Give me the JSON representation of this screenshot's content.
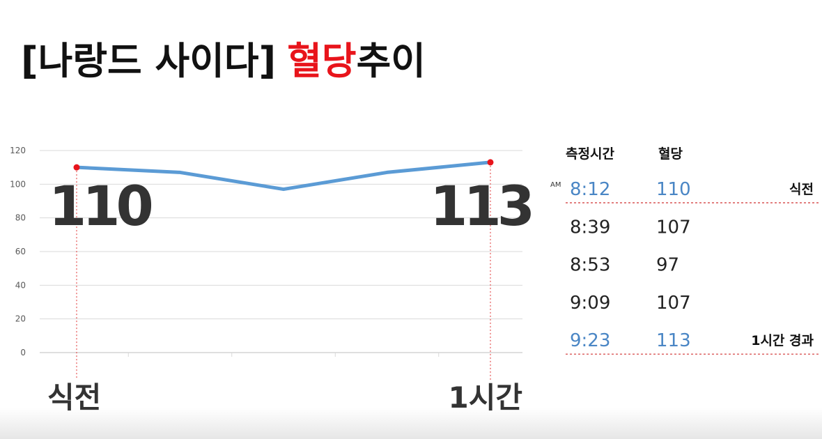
{
  "chart_data": {
    "type": "line",
    "title": [
      "[나랑드 사이다]",
      "혈당",
      "추이"
    ],
    "categories": [
      "식전",
      null,
      null,
      null,
      "1시간"
    ],
    "values": [
      110,
      107,
      97,
      107,
      113
    ],
    "value_labels": [
      "110",
      null,
      null,
      null,
      "113"
    ],
    "color": "#5b9bd5",
    "ylim": [
      0,
      120
    ],
    "yticks": [
      0,
      20,
      40,
      60,
      80,
      100,
      120
    ],
    "grid": true
  },
  "table": {
    "headers": [
      "측정시간",
      "혈당"
    ],
    "am_label": "AM",
    "rows": [
      [
        "8:12",
        "110",
        "식전"
      ],
      [
        "8:39",
        "107"
      ],
      [
        "8:53",
        "97"
      ],
      [
        "9:09",
        "107"
      ],
      [
        "9:23",
        "113",
        "1시간 경과"
      ]
    ]
  }
}
